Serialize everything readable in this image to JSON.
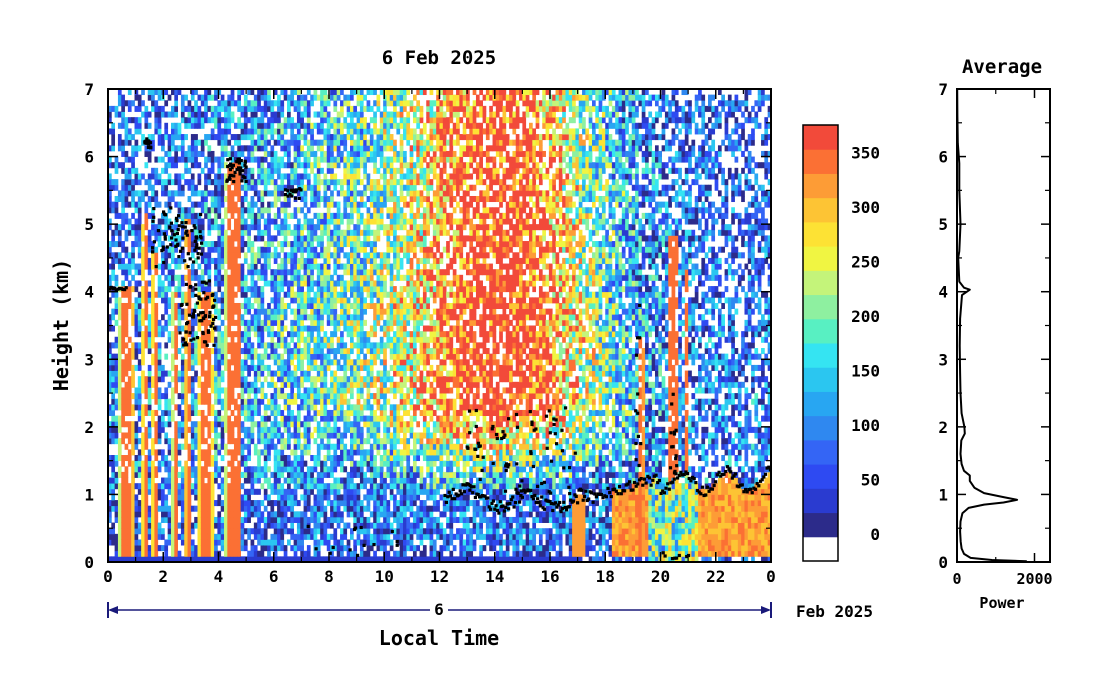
{
  "chart_data": [
    {
      "type": "heatmap",
      "title": "6 Feb 2025",
      "xlabel": "Local Time",
      "ylabel": "Height (km)",
      "xlim": [
        0,
        24
      ],
      "ylim": [
        0,
        7
      ],
      "x_ticks": [
        "0",
        "2",
        "4",
        "6",
        "8",
        "10",
        "12",
        "14",
        "16",
        "18",
        "20",
        "22",
        "0"
      ],
      "y_ticks": [
        "0",
        "1",
        "2",
        "3",
        "4",
        "5",
        "6",
        "7"
      ],
      "date_bar": {
        "day_label": "6",
        "month_label": "Feb 2025"
      },
      "colorbar": {
        "ticks": [
          "0",
          "50",
          "100",
          "150",
          "200",
          "250",
          "300",
          "350"
        ],
        "min": -25,
        "max": 375,
        "step": 25,
        "colors": [
          "#2c2b8a",
          "#2a3bd0",
          "#2e4af2",
          "#3465f5",
          "#2f88f0",
          "#28a6f2",
          "#2bc6f0",
          "#35e4f2",
          "#58f0c2",
          "#8ef0a0",
          "#c4f47a",
          "#f0f542",
          "#fde234",
          "#fdc434",
          "#fd9c36",
          "#fb7034",
          "#f24a3a"
        ]
      },
      "cloud_base_marker": "black dots"
    },
    {
      "type": "line",
      "title": "Average",
      "xlabel": "Power",
      "ylabel": "",
      "xlim": [
        0,
        2400
      ],
      "ylim": [
        0,
        7
      ],
      "x_ticks": [
        "0",
        "2000"
      ],
      "y_ticks": [
        "0",
        "1",
        "2",
        "3",
        "4",
        "5",
        "6",
        "7"
      ],
      "series": [
        {
          "points": [
            [
              1800,
              0.01
            ],
            [
              900,
              0.03
            ],
            [
              350,
              0.06
            ],
            [
              180,
              0.12
            ],
            [
              120,
              0.2
            ],
            [
              95,
              0.3
            ],
            [
              80,
              0.45
            ],
            [
              90,
              0.6
            ],
            [
              140,
              0.72
            ],
            [
              300,
              0.8
            ],
            [
              700,
              0.85
            ],
            [
              1200,
              0.88
            ],
            [
              1550,
              0.92
            ],
            [
              1200,
              0.96
            ],
            [
              700,
              1.02
            ],
            [
              450,
              1.1
            ],
            [
              330,
              1.2
            ],
            [
              330,
              1.28
            ],
            [
              180,
              1.35
            ],
            [
              120,
              1.45
            ],
            [
              90,
              1.6
            ],
            [
              110,
              1.8
            ],
            [
              200,
              1.9
            ],
            [
              190,
              2.0
            ],
            [
              120,
              2.2
            ],
            [
              90,
              2.5
            ],
            [
              80,
              2.8
            ],
            [
              70,
              3.2
            ],
            [
              80,
              3.6
            ],
            [
              130,
              3.95
            ],
            [
              330,
              4.03
            ],
            [
              180,
              4.06
            ],
            [
              60,
              4.15
            ],
            [
              30,
              4.5
            ],
            [
              60,
              4.6
            ],
            [
              90,
              5.0
            ],
            [
              60,
              5.5
            ],
            [
              60,
              5.9
            ],
            [
              20,
              6.2
            ],
            [
              10,
              6.6
            ],
            [
              5,
              7.0
            ]
          ]
        }
      ]
    }
  ]
}
